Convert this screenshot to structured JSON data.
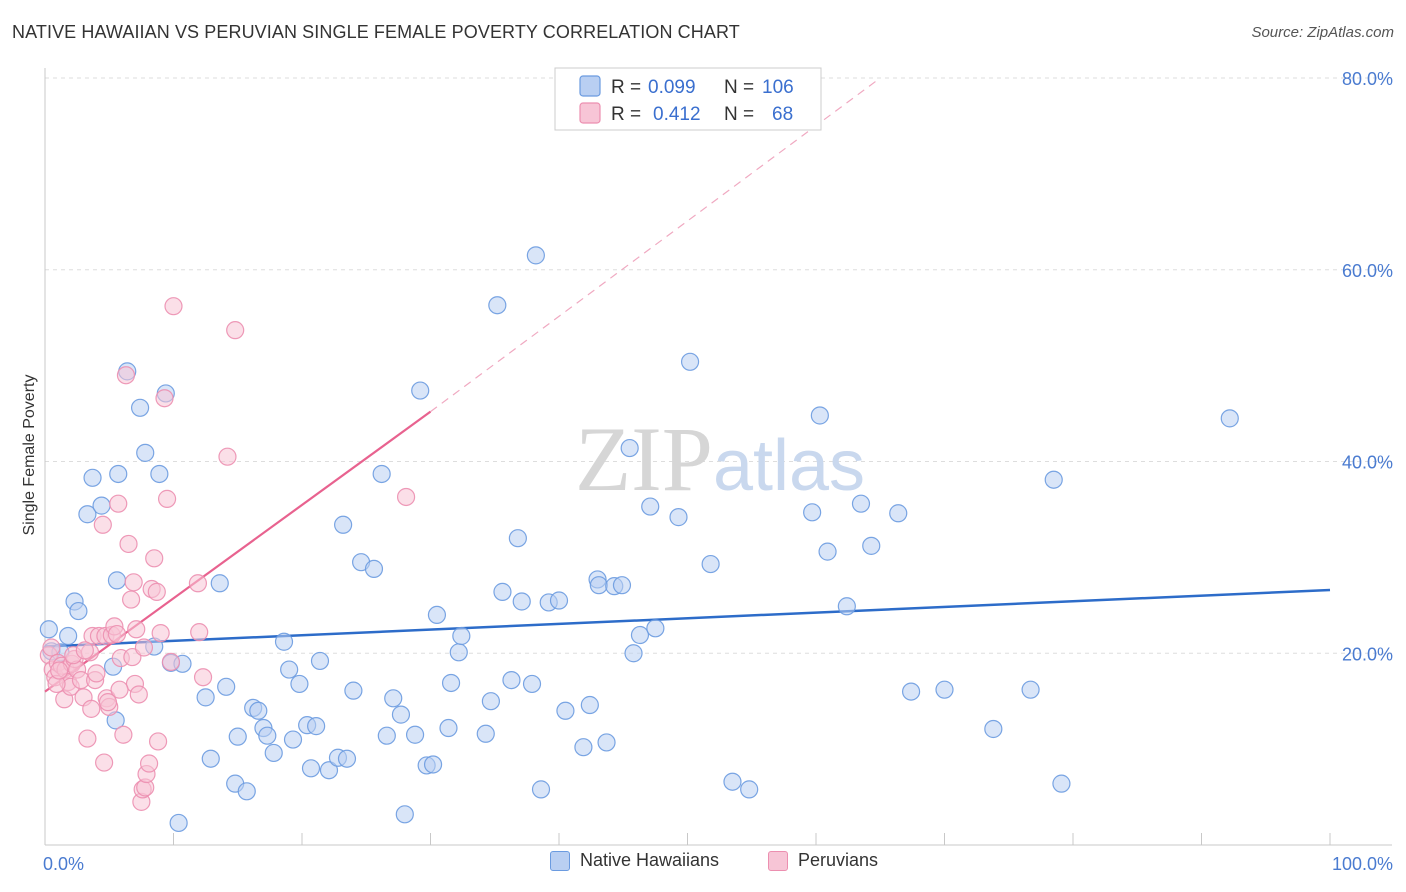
{
  "chart_data": {
    "type": "scatter",
    "title": "NATIVE HAWAIIAN VS PERUVIAN SINGLE FEMALE POVERTY CORRELATION CHART",
    "source": "Source: ZipAtlas.com",
    "ylabel": "Single Female Poverty",
    "xlabel": "",
    "xlim": [
      0,
      100
    ],
    "ylim": [
      0,
      80
    ],
    "x_tick_labels": [
      "0.0%",
      "100.0%"
    ],
    "y_ticks": [
      20,
      40,
      60,
      80
    ],
    "y_tick_labels": [
      "20.0%",
      "40.0%",
      "60.0%",
      "80.0%"
    ],
    "grid": true,
    "watermark": "ZIPatlas",
    "legend_position": "top-center",
    "stats": [
      {
        "r_label": "R =",
        "r_value": "0.099",
        "n_label": "N =",
        "n_value": "106"
      },
      {
        "r_label": "R =",
        "r_value": "0.412",
        "n_label": "N =",
        "n_value": "68"
      }
    ],
    "series": [
      {
        "name": "Native Hawaiians",
        "color": "#6b9be0",
        "fill": "#b9cff2",
        "trend": {
          "x": [
            0,
            100
          ],
          "y": [
            20.7,
            26.6
          ],
          "color": "#2d6cc9"
        },
        "points": [
          [
            0.3,
            22.5
          ],
          [
            0.5,
            20.2
          ],
          [
            1.2,
            20.1
          ],
          [
            1.8,
            21.8
          ],
          [
            2.3,
            25.4
          ],
          [
            2.6,
            24.4
          ],
          [
            3.3,
            34.5
          ],
          [
            3.7,
            38.3
          ],
          [
            4.4,
            35.4
          ],
          [
            5.3,
            18.6
          ],
          [
            5.5,
            13.0
          ],
          [
            5.6,
            27.6
          ],
          [
            5.7,
            38.7
          ],
          [
            6.4,
            49.4
          ],
          [
            7.4,
            45.6
          ],
          [
            7.8,
            40.9
          ],
          [
            8.5,
            20.7
          ],
          [
            8.9,
            38.7
          ],
          [
            9.4,
            47.1
          ],
          [
            9.8,
            19.0
          ],
          [
            10.4,
            2.3
          ],
          [
            10.7,
            18.9
          ],
          [
            12.5,
            15.4
          ],
          [
            12.9,
            9.0
          ],
          [
            13.6,
            27.3
          ],
          [
            14.1,
            16.5
          ],
          [
            14.8,
            6.4
          ],
          [
            15.0,
            11.3
          ],
          [
            15.7,
            5.6
          ],
          [
            16.2,
            14.3
          ],
          [
            16.6,
            14.0
          ],
          [
            17.0,
            12.2
          ],
          [
            17.3,
            11.4
          ],
          [
            17.8,
            9.6
          ],
          [
            18.6,
            21.2
          ],
          [
            19.0,
            18.3
          ],
          [
            19.3,
            11.0
          ],
          [
            19.8,
            16.8
          ],
          [
            20.4,
            12.5
          ],
          [
            20.7,
            8.0
          ],
          [
            21.1,
            12.4
          ],
          [
            21.4,
            19.2
          ],
          [
            22.1,
            7.8
          ],
          [
            22.8,
            9.1
          ],
          [
            23.2,
            33.4
          ],
          [
            23.5,
            9.0
          ],
          [
            24.0,
            16.1
          ],
          [
            24.6,
            29.5
          ],
          [
            25.6,
            28.8
          ],
          [
            26.2,
            38.7
          ],
          [
            26.6,
            11.4
          ],
          [
            27.1,
            15.3
          ],
          [
            27.7,
            13.6
          ],
          [
            28.0,
            3.2
          ],
          [
            28.8,
            11.5
          ],
          [
            29.2,
            47.4
          ],
          [
            29.7,
            8.3
          ],
          [
            30.2,
            8.4
          ],
          [
            30.5,
            24.0
          ],
          [
            31.4,
            12.2
          ],
          [
            31.6,
            16.9
          ],
          [
            32.2,
            20.1
          ],
          [
            32.4,
            21.8
          ],
          [
            34.3,
            11.6
          ],
          [
            34.7,
            15.0
          ],
          [
            35.2,
            56.3
          ],
          [
            35.6,
            26.4
          ],
          [
            36.3,
            17.2
          ],
          [
            36.8,
            32.0
          ],
          [
            37.1,
            25.4
          ],
          [
            37.9,
            16.8
          ],
          [
            38.6,
            5.8
          ],
          [
            38.2,
            61.5
          ],
          [
            39.2,
            25.3
          ],
          [
            40.0,
            25.5
          ],
          [
            40.5,
            14.0
          ],
          [
            41.9,
            10.2
          ],
          [
            42.4,
            14.6
          ],
          [
            43.0,
            27.7
          ],
          [
            43.1,
            27.1
          ],
          [
            43.7,
            10.7
          ],
          [
            44.3,
            27.0
          ],
          [
            44.9,
            27.1
          ],
          [
            45.5,
            41.4
          ],
          [
            45.8,
            20.0
          ],
          [
            46.3,
            21.9
          ],
          [
            47.1,
            35.3
          ],
          [
            47.5,
            22.6
          ],
          [
            49.3,
            34.2
          ],
          [
            50.2,
            50.4
          ],
          [
            51.8,
            29.3
          ],
          [
            53.5,
            6.6
          ],
          [
            54.8,
            5.8
          ],
          [
            59.7,
            34.7
          ],
          [
            60.3,
            44.8
          ],
          [
            60.9,
            30.6
          ],
          [
            62.4,
            24.9
          ],
          [
            63.5,
            35.6
          ],
          [
            64.3,
            31.2
          ],
          [
            66.4,
            34.6
          ],
          [
            67.4,
            16.0
          ],
          [
            70.0,
            16.2
          ],
          [
            73.8,
            12.1
          ],
          [
            76.7,
            16.2
          ],
          [
            78.5,
            38.1
          ],
          [
            79.1,
            6.4
          ],
          [
            92.2,
            44.5
          ]
        ]
      },
      {
        "name": "Peruvians",
        "color": "#ec8fb0",
        "fill": "#f7c5d6",
        "trend": {
          "x": [
            0,
            30
          ],
          "y": [
            16.0,
            45.2
          ],
          "color": "#e8628f"
        },
        "trend_extended": {
          "x": [
            30,
            65
          ],
          "y": [
            45.2,
            80.0
          ]
        },
        "points": [
          [
            0.3,
            19.8
          ],
          [
            0.5,
            20.6
          ],
          [
            0.6,
            18.3
          ],
          [
            0.8,
            17.5
          ],
          [
            1.0,
            19.0
          ],
          [
            1.3,
            18.7
          ],
          [
            1.5,
            15.2
          ],
          [
            1.6,
            18.3
          ],
          [
            1.8,
            17.0
          ],
          [
            2.0,
            16.5
          ],
          [
            2.1,
            18.9
          ],
          [
            2.3,
            19.4
          ],
          [
            2.5,
            18.3
          ],
          [
            2.8,
            17.2
          ],
          [
            3.0,
            15.4
          ],
          [
            3.3,
            11.1
          ],
          [
            3.5,
            20.1
          ],
          [
            3.7,
            21.8
          ],
          [
            3.9,
            17.2
          ],
          [
            4.2,
            21.8
          ],
          [
            4.5,
            33.4
          ],
          [
            4.6,
            8.6
          ],
          [
            4.7,
            21.8
          ],
          [
            4.8,
            15.3
          ],
          [
            5.0,
            14.4
          ],
          [
            5.2,
            21.9
          ],
          [
            5.4,
            22.8
          ],
          [
            5.6,
            22.0
          ],
          [
            5.7,
            35.6
          ],
          [
            5.9,
            19.5
          ],
          [
            6.1,
            11.5
          ],
          [
            6.3,
            49.0
          ],
          [
            6.5,
            31.4
          ],
          [
            6.7,
            25.6
          ],
          [
            6.9,
            27.4
          ],
          [
            7.0,
            16.8
          ],
          [
            7.1,
            22.5
          ],
          [
            7.3,
            15.7
          ],
          [
            7.5,
            4.5
          ],
          [
            7.6,
            5.8
          ],
          [
            7.8,
            6.0
          ],
          [
            7.9,
            7.4
          ],
          [
            8.1,
            8.5
          ],
          [
            8.3,
            26.7
          ],
          [
            8.5,
            29.9
          ],
          [
            8.7,
            26.4
          ],
          [
            8.8,
            10.8
          ],
          [
            9.0,
            22.1
          ],
          [
            9.3,
            46.6
          ],
          [
            9.5,
            36.1
          ],
          [
            9.8,
            19.1
          ],
          [
            10.0,
            56.2
          ],
          [
            11.9,
            27.3
          ],
          [
            12.0,
            22.2
          ],
          [
            12.3,
            17.5
          ],
          [
            14.2,
            40.5
          ],
          [
            14.8,
            53.7
          ],
          [
            28.1,
            36.3
          ],
          [
            0.9,
            16.8
          ],
          [
            1.1,
            18.2
          ],
          [
            2.2,
            19.8
          ],
          [
            3.1,
            20.3
          ],
          [
            3.6,
            14.2
          ],
          [
            4.0,
            17.9
          ],
          [
            5.8,
            16.2
          ],
          [
            6.8,
            19.6
          ],
          [
            7.7,
            20.6
          ],
          [
            4.9,
            14.9
          ]
        ]
      }
    ]
  }
}
